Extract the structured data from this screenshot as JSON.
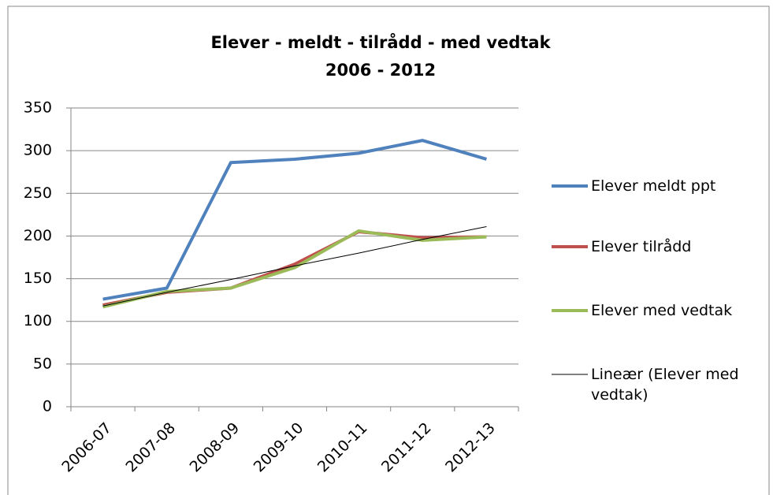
{
  "chart_data": {
    "type": "line",
    "title_lines": [
      "Elever - meldt - tilrådd - med vedtak",
      "2006 - 2012"
    ],
    "categories": [
      "2006-07",
      "2007-08",
      "2008-09",
      "2009-10",
      "2010-11",
      "2011-12",
      "2012-13"
    ],
    "series": [
      {
        "name": "Elever meldt ppt",
        "color": "#4f81bd",
        "width": 4,
        "values": [
          126,
          139,
          286,
          290,
          297,
          312,
          290
        ]
      },
      {
        "name": "Elever tilrådd",
        "color": "#c0504d",
        "width": 4,
        "values": [
          119,
          134,
          139,
          167,
          205,
          198,
          199
        ]
      },
      {
        "name": "Elever med vedtak",
        "color": "#9bbb59",
        "width": 4,
        "values": [
          117,
          135,
          139,
          163,
          206,
          195,
          199
        ]
      },
      {
        "name": "Lineær (Elever med vedtak)",
        "color": "#000000",
        "width": 1,
        "values": [
          118,
          134,
          149,
          165,
          180,
          196,
          211
        ]
      }
    ],
    "ylim": [
      0,
      350
    ],
    "yticks": [
      0,
      50,
      100,
      150,
      200,
      250,
      300,
      350
    ],
    "grid": true,
    "legend": "right"
  }
}
